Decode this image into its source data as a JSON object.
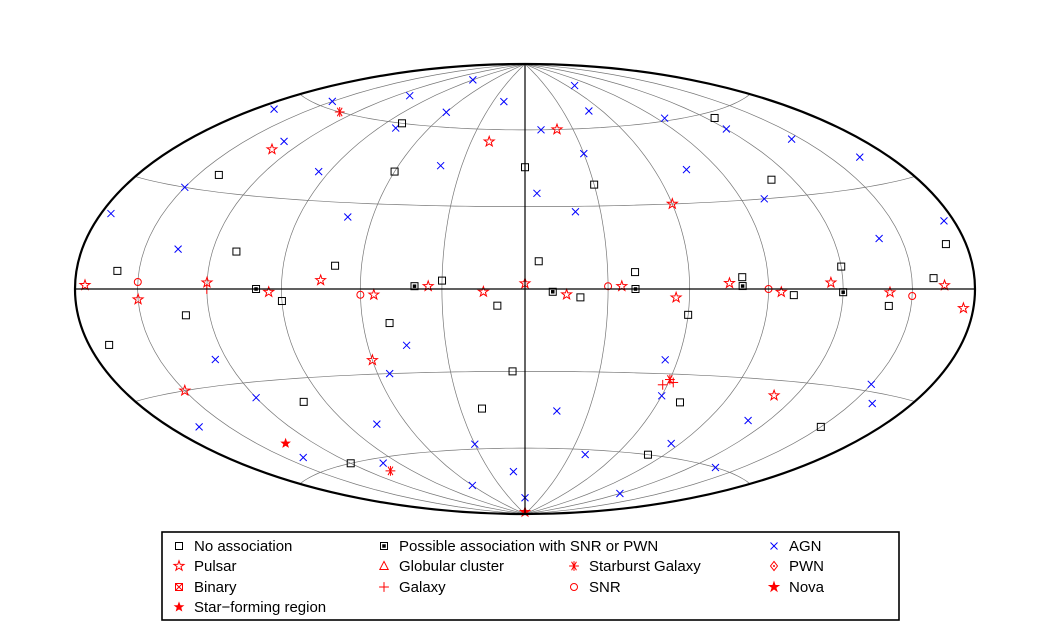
{
  "chart_data": {
    "type": "scatter",
    "projection": "aitoff-hammer all-sky (galactic coordinates)",
    "grid": true,
    "title": "",
    "legend": {
      "placement": "bottom",
      "entries": [
        {
          "key": "none",
          "label": "No association",
          "marker": "square-open",
          "color": "#000000"
        },
        {
          "key": "possible",
          "label": "Possible association with SNR or PWN",
          "marker": "square-dotted",
          "color": "#000000"
        },
        {
          "key": "agn",
          "label": "AGN",
          "marker": "x",
          "color": "#0000ff"
        },
        {
          "key": "pulsar",
          "label": "Pulsar",
          "marker": "star-open",
          "color": "#ff0000"
        },
        {
          "key": "globular",
          "label": "Globular cluster",
          "marker": "triangle-open",
          "color": "#ff0000"
        },
        {
          "key": "starburst",
          "label": "Starburst Galaxy",
          "marker": "asterisk",
          "color": "#ff0000"
        },
        {
          "key": "pwn",
          "label": "PWN",
          "marker": "diamond-dot",
          "color": "#ff0000"
        },
        {
          "key": "binary",
          "label": "Binary",
          "marker": "square-x",
          "color": "#ff0000"
        },
        {
          "key": "galaxy",
          "label": "Galaxy",
          "marker": "plus",
          "color": "#ff0000"
        },
        {
          "key": "snr",
          "label": "SNR",
          "marker": "circle-open",
          "color": "#ff0000"
        },
        {
          "key": "nova",
          "label": "Nova",
          "marker": "star-filled",
          "color": "#ff0000"
        },
        {
          "key": "sfr",
          "label": "Star−forming region",
          "marker": "star-filled-small",
          "color": "#ff0000"
        }
      ]
    },
    "series": [
      {
        "name": "AGN",
        "points": [
          [
            -170,
            55
          ],
          [
            -150,
            62
          ],
          [
            -130,
            48
          ],
          [
            -110,
            70
          ],
          [
            -95,
            40
          ],
          [
            -80,
            58
          ],
          [
            -60,
            66
          ],
          [
            -40,
            45
          ],
          [
            -20,
            72
          ],
          [
            10,
            60
          ],
          [
            30,
            50
          ],
          [
            50,
            67
          ],
          [
            75,
            42
          ],
          [
            95,
            61
          ],
          [
            120,
            54
          ],
          [
            145,
            47
          ],
          [
            165,
            38
          ],
          [
            -165,
            -40
          ],
          [
            -140,
            -55
          ],
          [
            -120,
            -35
          ],
          [
            -100,
            -62
          ],
          [
            -75,
            -48
          ],
          [
            -55,
            -30
          ],
          [
            -30,
            -58
          ],
          [
            -10,
            -70
          ],
          [
            15,
            -45
          ],
          [
            40,
            -62
          ],
          [
            60,
            -38
          ],
          [
            85,
            -55
          ],
          [
            110,
            -44
          ],
          [
            135,
            -60
          ],
          [
            160,
            -33
          ],
          [
            -175,
            20
          ],
          [
            -150,
            30
          ],
          [
            -125,
            -22
          ],
          [
            -70,
            25
          ],
          [
            -45,
            -20
          ],
          [
            20,
            28
          ],
          [
            55,
            -25
          ],
          [
            100,
            30
          ],
          [
            150,
            -28
          ],
          [
            175,
            18
          ],
          [
            -90,
            80
          ],
          [
            0,
            -82
          ],
          [
            120,
            -75
          ],
          [
            -135,
            12
          ],
          [
            140,
            15
          ],
          [
            -60,
            -75
          ],
          [
            70,
            78
          ],
          [
            5,
            35
          ]
        ]
      },
      {
        "name": "No association",
        "points": [
          [
            -160,
            5
          ],
          [
            -130,
            -8
          ],
          [
            -110,
            12
          ],
          [
            -90,
            -4
          ],
          [
            -70,
            8
          ],
          [
            -50,
            -12
          ],
          [
            -30,
            3
          ],
          [
            -10,
            -6
          ],
          [
            5,
            10
          ],
          [
            20,
            -3
          ],
          [
            40,
            6
          ],
          [
            60,
            -9
          ],
          [
            80,
            4
          ],
          [
            100,
            -2
          ],
          [
            120,
            7
          ],
          [
            140,
            -5
          ],
          [
            160,
            3
          ],
          [
            -140,
            35
          ],
          [
            -100,
            -38
          ],
          [
            -60,
            42
          ],
          [
            -20,
            -44
          ],
          [
            30,
            38
          ],
          [
            70,
            -40
          ],
          [
            110,
            36
          ],
          [
            150,
            -42
          ],
          [
            -170,
            -15
          ],
          [
            170,
            12
          ],
          [
            -80,
            60
          ],
          [
            80,
            -60
          ],
          [
            0,
            45
          ],
          [
            -5,
            -30
          ],
          [
            -120,
            -60
          ],
          [
            125,
            58
          ]
        ]
      },
      {
        "name": "Pulsar",
        "points": [
          [
            -175,
            1
          ],
          [
            -150,
            -3
          ],
          [
            -120,
            2
          ],
          [
            -95,
            -1
          ],
          [
            -75,
            3
          ],
          [
            -55,
            -2
          ],
          [
            -35,
            1
          ],
          [
            -15,
            -1
          ],
          [
            0,
            2
          ],
          [
            15,
            -2
          ],
          [
            35,
            1
          ],
          [
            55,
            -3
          ],
          [
            75,
            2
          ],
          [
            95,
            -1
          ],
          [
            115,
            2
          ],
          [
            140,
            -1
          ],
          [
            165,
            1
          ],
          [
            -130,
            45
          ],
          [
            -60,
            -25
          ],
          [
            20,
            60
          ],
          [
            60,
            30
          ],
          [
            -20,
            55
          ],
          [
            110,
            -35
          ],
          [
            -150,
            -30
          ],
          [
            175,
            -5
          ]
        ]
      },
      {
        "name": "Possible association with SNR or PWN",
        "points": [
          [
            -100,
            0
          ],
          [
            -40,
            1
          ],
          [
            10,
            -1
          ],
          [
            40,
            0
          ],
          [
            80,
            1
          ],
          [
            120,
            -1
          ]
        ]
      },
      {
        "name": "Starburst Galaxy",
        "points": [
          [
            -130,
            60
          ],
          [
            60,
            -32
          ],
          [
            -105,
            -65
          ]
        ]
      },
      {
        "name": "Galaxy",
        "points": [
          [
            62,
            -33
          ],
          [
            58,
            -34
          ],
          [
            -120,
            0
          ]
        ]
      },
      {
        "name": "SNR",
        "points": [
          [
            -150,
            2
          ],
          [
            -60,
            -2
          ],
          [
            30,
            1
          ],
          [
            90,
            0
          ],
          [
            150,
            -2
          ]
        ]
      },
      {
        "name": "Nova",
        "points": [
          [
            0,
            -89
          ]
        ]
      },
      {
        "name": "Star−forming region",
        "points": [
          [
            -135,
            -50
          ]
        ]
      }
    ]
  }
}
